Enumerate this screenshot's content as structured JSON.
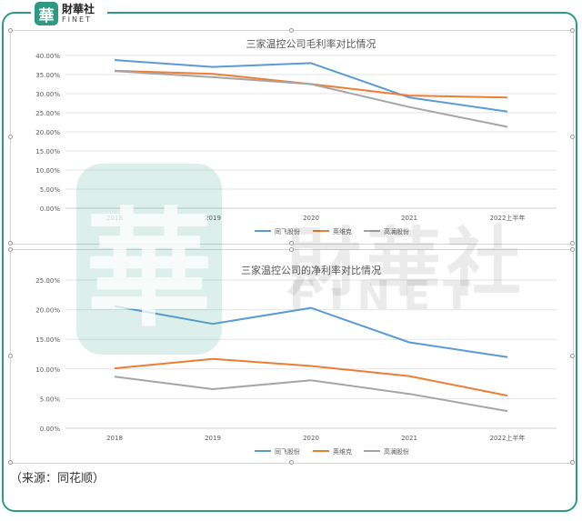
{
  "brand": {
    "badge": "華",
    "name_cn": "財華社",
    "name_en": "FINET"
  },
  "watermark": {
    "badge": "華",
    "name_cn": "財華社",
    "name_en": "FINET"
  },
  "source": "（来源：同花顺）",
  "chart_data": [
    {
      "type": "line",
      "title": "三家温控公司毛利率对比情况",
      "xlabel": "",
      "ylabel": "",
      "categories": [
        "2018",
        "2019",
        "2020",
        "2021",
        "2022上半年"
      ],
      "yticks": [
        "0.00%",
        "5.00%",
        "10.00%",
        "15.00%",
        "20.00%",
        "25.00%",
        "30.00%",
        "35.00%",
        "40.00%"
      ],
      "ylim": [
        0,
        40
      ],
      "grid": true,
      "legend": "bottom",
      "series": [
        {
          "name": "同飞股份",
          "color": "#5b9bd5",
          "values": [
            38.8,
            37.0,
            38.0,
            29.0,
            25.3
          ]
        },
        {
          "name": "英维克",
          "color": "#ed7d31",
          "values": [
            36.0,
            35.2,
            32.5,
            29.5,
            29.0
          ]
        },
        {
          "name": "高澜股份",
          "color": "#a5a5a5",
          "values": [
            35.9,
            34.3,
            32.5,
            26.5,
            21.3
          ]
        }
      ]
    },
    {
      "type": "line",
      "title": "三家温控公司的净利率对比情况",
      "xlabel": "",
      "ylabel": "",
      "categories": [
        "2018",
        "2019",
        "2020",
        "2021",
        "2022上半年"
      ],
      "yticks": [
        "0.00%",
        "5.00%",
        "10.00%",
        "15.00%",
        "20.00%",
        "25.00%"
      ],
      "ylim": [
        0,
        25
      ],
      "grid": true,
      "legend": "bottom",
      "series": [
        {
          "name": "同飞股份",
          "color": "#5b9bd5",
          "values": [
            20.6,
            17.6,
            20.3,
            14.5,
            12.0
          ]
        },
        {
          "name": "英维克",
          "color": "#ed7d31",
          "values": [
            10.1,
            11.7,
            10.5,
            8.8,
            5.5
          ]
        },
        {
          "name": "高澜股份",
          "color": "#a5a5a5",
          "values": [
            8.7,
            6.6,
            8.1,
            5.8,
            2.9
          ]
        }
      ]
    }
  ]
}
